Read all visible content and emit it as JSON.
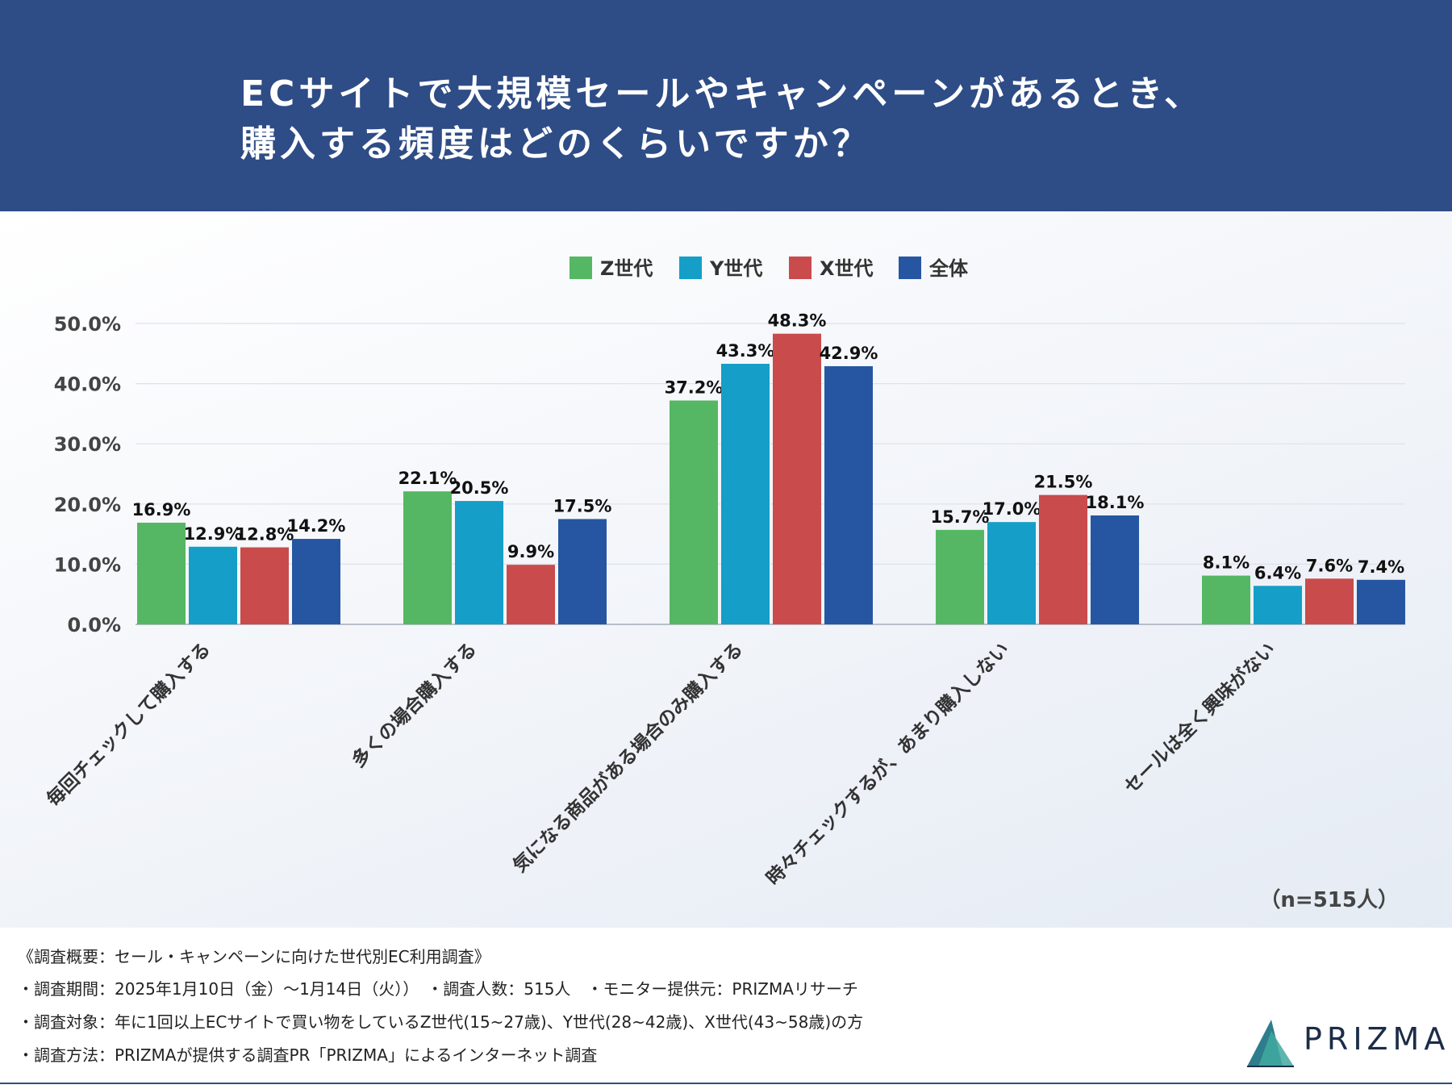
{
  "header": {
    "title_line1": "ECサイトで大規模セールやキャンペーンがあるとき、",
    "title_line2": "購入する頻度はどのくらいですか？"
  },
  "chart_data": {
    "type": "bar",
    "categories": [
      "毎回チェックして購入する",
      "多くの場合購入する",
      "気になる商品がある場合のみ購入する",
      "時々チェックするが、あまり購入しない",
      "セールは全く興味がない"
    ],
    "series": [
      {
        "name": "Z世代",
        "color": "#55b764",
        "values": [
          16.9,
          22.1,
          37.2,
          15.7,
          8.1
        ]
      },
      {
        "name": "Y世代",
        "color": "#159ec8",
        "values": [
          12.9,
          20.5,
          43.3,
          17.0,
          6.4
        ]
      },
      {
        "name": "X世代",
        "color": "#c94b4b",
        "values": [
          12.8,
          9.9,
          48.3,
          21.5,
          7.6
        ]
      },
      {
        "name": "全体",
        "color": "#2656a2",
        "values": [
          14.2,
          17.5,
          42.9,
          18.1,
          7.4
        ]
      }
    ],
    "y_ticks": [
      0,
      10,
      20,
      30,
      40,
      50
    ],
    "ylim": [
      0,
      50
    ],
    "value_suffix": "%",
    "legend_position": "top-center",
    "grid": true
  },
  "note": "（n=515人）",
  "footer": {
    "line1": "《調査概要：セール・キャンペーンに向けた世代別EC利用調査》",
    "line2": "・調査期間：2025年1月10日（金）〜1月14日（火））　・調査人数：515人　・モニター提供元：PRIZMAリサーチ",
    "line3": "・調査対象：年に1回以上ECサイトで買い物をしているZ世代(15~27歳)、Y世代(28~42歳)、X世代(43~58歳)の方",
    "line4": "・調査方法：PRIZMAが提供する調査PR「PRIZMA」によるインターネット調査"
  },
  "logo": {
    "text": "PRIZMA",
    "colors": [
      "#2e7d8c",
      "#3fa9a0",
      "#1c2c48"
    ]
  }
}
